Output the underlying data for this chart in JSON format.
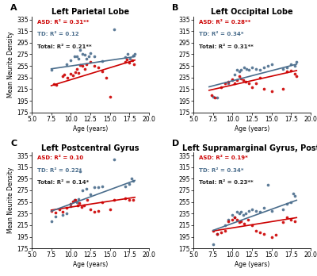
{
  "panels": [
    {
      "label": "A",
      "title": "Left Parietal Lobe",
      "annot_asd": "ASD: R² = 0.31**",
      "annot_td": "TD: R² = 0.12",
      "annot_total": "Total: R² = 0.21**",
      "asd_points": [
        [
          7.8,
          224
        ],
        [
          8.1,
          222
        ],
        [
          9.0,
          237
        ],
        [
          9.2,
          240
        ],
        [
          9.6,
          235
        ],
        [
          10.0,
          241
        ],
        [
          10.3,
          239
        ],
        [
          10.6,
          244
        ],
        [
          10.8,
          250
        ],
        [
          11.0,
          243
        ],
        [
          11.2,
          257
        ],
        [
          11.5,
          255
        ],
        [
          11.8,
          249
        ],
        [
          12.0,
          258
        ],
        [
          12.5,
          262
        ],
        [
          13.0,
          255
        ],
        [
          13.5,
          252
        ],
        [
          14.0,
          245
        ],
        [
          14.5,
          235
        ],
        [
          15.0,
          202
        ],
        [
          17.0,
          262
        ],
        [
          17.2,
          266
        ],
        [
          17.5,
          260
        ],
        [
          17.9,
          265
        ],
        [
          18.1,
          258
        ]
      ],
      "td_points": [
        [
          7.5,
          248
        ],
        [
          9.5,
          258
        ],
        [
          10.0,
          265
        ],
        [
          10.5,
          271
        ],
        [
          10.8,
          272
        ],
        [
          11.0,
          268
        ],
        [
          11.2,
          282
        ],
        [
          11.5,
          276
        ],
        [
          11.8,
          274
        ],
        [
          12.0,
          268
        ],
        [
          12.3,
          272
        ],
        [
          12.5,
          277
        ],
        [
          13.0,
          271
        ],
        [
          14.0,
          264
        ],
        [
          15.5,
          318
        ],
        [
          17.0,
          270
        ],
        [
          17.3,
          275
        ],
        [
          17.6,
          268
        ],
        [
          18.0,
          273
        ],
        [
          18.2,
          275
        ]
      ],
      "asd_line_x": [
        7.5,
        18.2
      ],
      "asd_line_y": [
        221,
        265
      ],
      "td_line_x": [
        7.5,
        18.2
      ],
      "td_line_y": [
        250,
        271
      ],
      "ylim": [
        175,
        340
      ],
      "yticks": [
        175,
        195,
        215,
        235,
        255,
        275,
        295,
        315,
        335
      ]
    },
    {
      "label": "B",
      "title": "Left Occipital Lobe",
      "annot_asd": "ASD: R² = 0.28**",
      "annot_td": "TD: R² = 0.34*",
      "annot_total": "Total: R² = 0.31**",
      "asd_points": [
        [
          7.3,
          205
        ],
        [
          7.7,
          200
        ],
        [
          8.5,
          218
        ],
        [
          9.0,
          225
        ],
        [
          9.5,
          228
        ],
        [
          10.0,
          232
        ],
        [
          10.3,
          225
        ],
        [
          10.6,
          230
        ],
        [
          10.9,
          237
        ],
        [
          11.1,
          233
        ],
        [
          11.4,
          230
        ],
        [
          11.7,
          228
        ],
        [
          12.1,
          225
        ],
        [
          12.5,
          218
        ],
        [
          13.0,
          225
        ],
        [
          13.5,
          235
        ],
        [
          14.0,
          215
        ],
        [
          15.0,
          212
        ],
        [
          16.5,
          215
        ],
        [
          17.0,
          245
        ],
        [
          17.5,
          247
        ],
        [
          18.0,
          242
        ],
        [
          18.2,
          237
        ]
      ],
      "td_points": [
        [
          7.5,
          202
        ],
        [
          8.0,
          200
        ],
        [
          9.5,
          225
        ],
        [
          10.0,
          230
        ],
        [
          10.3,
          240
        ],
        [
          10.6,
          248
        ],
        [
          10.9,
          245
        ],
        [
          11.1,
          248
        ],
        [
          11.5,
          252
        ],
        [
          11.8,
          250
        ],
        [
          12.1,
          248
        ],
        [
          12.5,
          252
        ],
        [
          13.0,
          250
        ],
        [
          13.5,
          248
        ],
        [
          14.0,
          252
        ],
        [
          14.5,
          255
        ],
        [
          15.0,
          258
        ],
        [
          16.5,
          250
        ],
        [
          17.0,
          252
        ],
        [
          17.5,
          258
        ],
        [
          18.0,
          255
        ],
        [
          18.2,
          262
        ]
      ],
      "asd_line_x": [
        7.0,
        18.2
      ],
      "asd_line_y": [
        213,
        247
      ],
      "td_line_x": [
        7.0,
        18.2
      ],
      "td_line_y": [
        219,
        258
      ],
      "ylim": [
        175,
        340
      ],
      "yticks": [
        175,
        195,
        215,
        235,
        255,
        275,
        295,
        315,
        335
      ]
    },
    {
      "label": "C",
      "title": "Left Postcentral Gyrus",
      "annot_asd": "ASD: R² = 0.10",
      "annot_td": "TD: R² = 0.22*",
      "annot_total": "Total: R² = 0.14*",
      "asd_points": [
        [
          7.5,
          240
        ],
        [
          8.0,
          237
        ],
        [
          8.5,
          242
        ],
        [
          9.0,
          238
        ],
        [
          9.5,
          245
        ],
        [
          10.0,
          252
        ],
        [
          10.3,
          256
        ],
        [
          10.6,
          259
        ],
        [
          10.9,
          249
        ],
        [
          11.1,
          253
        ],
        [
          11.4,
          246
        ],
        [
          11.7,
          249
        ],
        [
          12.1,
          258
        ],
        [
          12.5,
          242
        ],
        [
          13.0,
          238
        ],
        [
          13.5,
          240
        ],
        [
          14.0,
          255
        ],
        [
          15.0,
          242
        ],
        [
          15.5,
          258
        ],
        [
          17.0,
          262
        ],
        [
          17.5,
          258
        ],
        [
          18.0,
          258
        ]
      ],
      "td_points": [
        [
          7.5,
          222
        ],
        [
          8.0,
          230
        ],
        [
          9.0,
          232
        ],
        [
          9.5,
          235
        ],
        [
          10.0,
          248
        ],
        [
          10.5,
          258
        ],
        [
          10.8,
          255
        ],
        [
          11.0,
          260
        ],
        [
          11.2,
          308
        ],
        [
          11.5,
          275
        ],
        [
          12.0,
          278
        ],
        [
          12.5,
          268
        ],
        [
          13.0,
          280
        ],
        [
          13.5,
          280
        ],
        [
          14.0,
          282
        ],
        [
          15.5,
          328
        ],
        [
          17.0,
          282
        ],
        [
          17.5,
          286
        ],
        [
          17.8,
          295
        ],
        [
          18.0,
          292
        ]
      ],
      "asd_line_x": [
        7.5,
        18.2
      ],
      "asd_line_y": [
        241,
        263
      ],
      "td_line_x": [
        7.5,
        18.2
      ],
      "td_line_y": [
        239,
        292
      ],
      "ylim": [
        175,
        340
      ],
      "yticks": [
        175,
        195,
        215,
        235,
        255,
        275,
        295,
        315,
        335
      ]
    },
    {
      "label": "D",
      "title": "Left Supramarginal Gyrus, Post.",
      "annot_asd": "ASD: R² = 0.19*",
      "annot_td": "TD: R² = 0.34*",
      "annot_total": "Total: R² = 0.23**",
      "asd_points": [
        [
          7.5,
          205
        ],
        [
          8.0,
          200
        ],
        [
          8.5,
          202
        ],
        [
          9.0,
          205
        ],
        [
          9.5,
          222
        ],
        [
          10.0,
          225
        ],
        [
          10.3,
          228
        ],
        [
          10.6,
          225
        ],
        [
          10.9,
          220
        ],
        [
          11.1,
          222
        ],
        [
          11.5,
          218
        ],
        [
          12.0,
          225
        ],
        [
          12.5,
          215
        ],
        [
          13.0,
          205
        ],
        [
          13.5,
          202
        ],
        [
          14.0,
          200
        ],
        [
          15.0,
          195
        ],
        [
          15.5,
          198
        ],
        [
          16.5,
          220
        ],
        [
          17.0,
          228
        ],
        [
          17.5,
          225
        ],
        [
          18.0,
          222
        ]
      ],
      "td_points": [
        [
          7.5,
          182
        ],
        [
          8.0,
          200
        ],
        [
          9.0,
          215
        ],
        [
          9.5,
          225
        ],
        [
          10.0,
          232
        ],
        [
          10.3,
          228
        ],
        [
          10.6,
          238
        ],
        [
          10.9,
          235
        ],
        [
          11.1,
          238
        ],
        [
          11.4,
          232
        ],
        [
          11.7,
          235
        ],
        [
          12.1,
          240
        ],
        [
          12.5,
          242
        ],
        [
          13.0,
          240
        ],
        [
          13.5,
          238
        ],
        [
          14.0,
          245
        ],
        [
          14.5,
          285
        ],
        [
          15.0,
          240
        ],
        [
          16.5,
          242
        ],
        [
          17.0,
          252
        ],
        [
          17.5,
          255
        ],
        [
          17.8,
          270
        ],
        [
          18.0,
          265
        ]
      ],
      "asd_line_x": [
        7.5,
        18.2
      ],
      "asd_line_y": [
        205,
        228
      ],
      "td_line_x": [
        7.5,
        18.2
      ],
      "td_line_y": [
        206,
        258
      ],
      "ylim": [
        175,
        340
      ],
      "yticks": [
        175,
        195,
        215,
        235,
        255,
        275,
        295,
        315,
        335
      ]
    }
  ],
  "xlim": [
    5.0,
    20.0
  ],
  "xticks": [
    5.0,
    7.5,
    10.0,
    12.5,
    15.0,
    17.5,
    20.0
  ],
  "xtick_labels": [
    "5.0",
    "7.5",
    "10.0",
    "12.5",
    "15.0",
    "17.5",
    "20.0"
  ],
  "ytick_labels": [
    "175",
    "195",
    "215",
    "235",
    "255",
    "275",
    "295",
    "315",
    "335"
  ],
  "xlabel": "Age (years)",
  "ylabel": "Mean Neurite Density",
  "asd_color": "#CC0000",
  "td_color": "#4A6D8C",
  "total_color": "#222222",
  "bg_color": "#FFFFFF",
  "marker_size": 7,
  "linewidth": 1.2,
  "annot_fontsize": 5.0,
  "axis_fontsize": 5.5,
  "title_fontsize": 7.0,
  "panel_label_fontsize": 8.0
}
